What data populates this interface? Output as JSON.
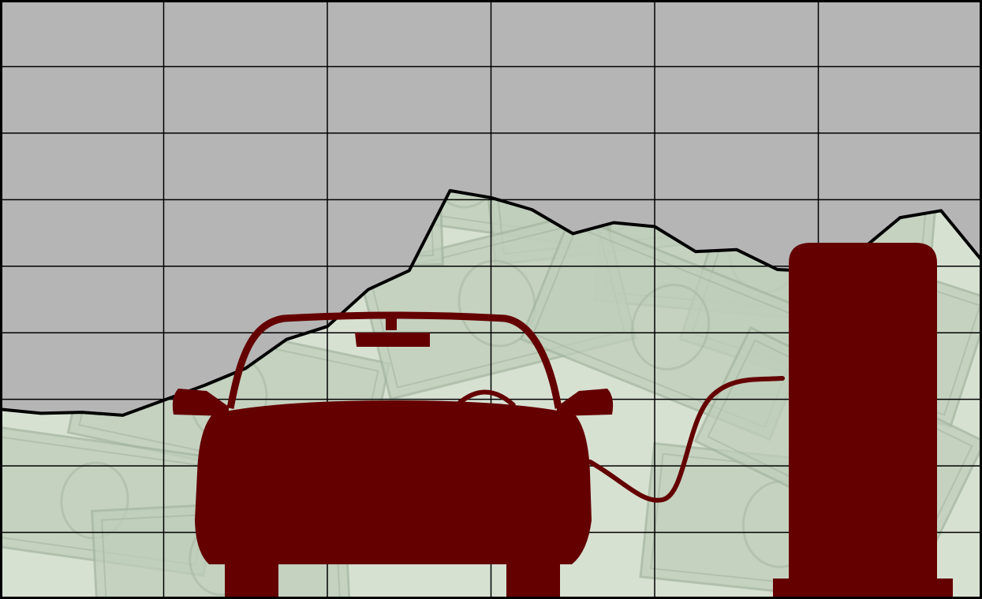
{
  "chart_data": {
    "type": "line",
    "title": "",
    "xlabel": "",
    "ylabel": "",
    "x": [
      0,
      1,
      2,
      3,
      4,
      5,
      6,
      7,
      8,
      9,
      10,
      11,
      12,
      13,
      14,
      15,
      16,
      17,
      18,
      19,
      20,
      21,
      22,
      23,
      24
    ],
    "values": [
      2.9,
      2.86,
      2.87,
      2.84,
      2.99,
      3.14,
      3.31,
      3.6,
      3.73,
      4.1,
      4.29,
      5.09,
      5.02,
      4.9,
      4.66,
      4.77,
      4.73,
      4.48,
      4.5,
      4.3,
      4.28,
      4.48,
      4.82,
      4.89,
      4.39
    ],
    "xlim": [
      0,
      24
    ],
    "ylim": [
      1,
      7
    ],
    "grid": true,
    "colors": {
      "fill_above": "#b5b5b5",
      "line": "#000000",
      "grid": "#000000",
      "background": "#d7e1d2",
      "banknote": "#bfcdbb",
      "banknote_detail": "#a4b6a0",
      "silhouette": "#640000"
    }
  },
  "illustration": {
    "background": "banknotes-pattern",
    "car_icon": "car-silhouette-icon",
    "charger_icon": "charging-station-icon",
    "cable_icon": "charging-cable-icon"
  }
}
